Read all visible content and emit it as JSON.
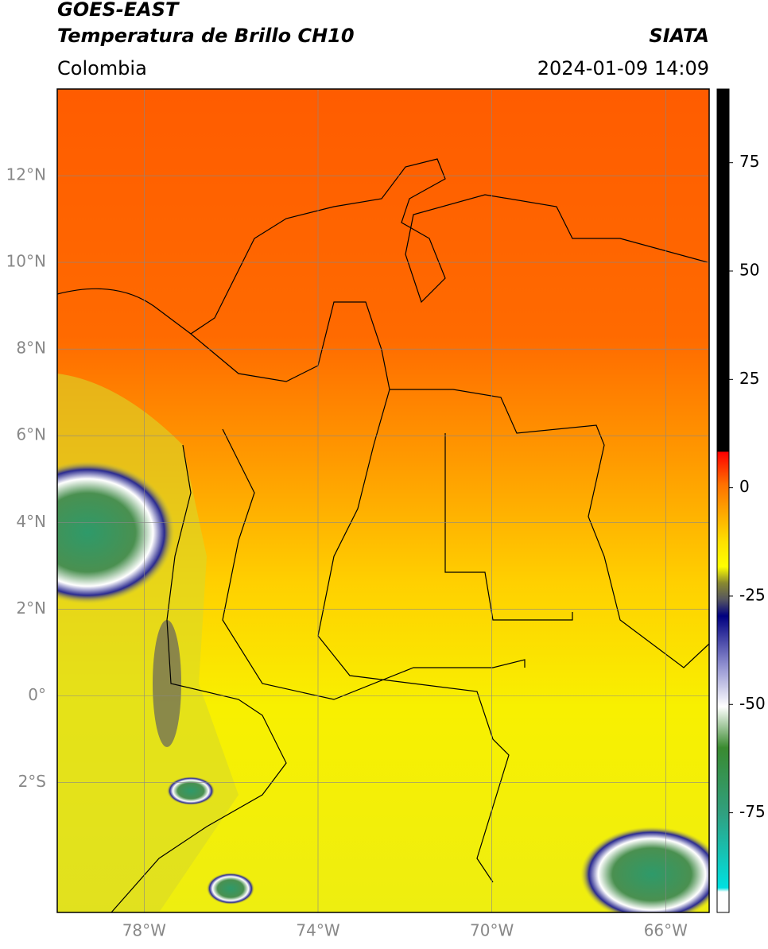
{
  "header": {
    "title_line1": "GOES-EAST",
    "title_line2": "Temperatura de Brillo CH10",
    "region": "Colombia",
    "source": "SIATA",
    "datetime": "2024-01-09 14:09"
  },
  "map": {
    "xlim": [
      -80,
      -65
    ],
    "ylim": [
      -5,
      14
    ],
    "xticks": [
      {
        "value": -78,
        "label": "78°W"
      },
      {
        "value": -74,
        "label": "74°W"
      },
      {
        "value": -70,
        "label": "70°W"
      },
      {
        "value": -66,
        "label": "66°W"
      }
    ],
    "yticks": [
      {
        "value": 12,
        "label": "12°N"
      },
      {
        "value": 10,
        "label": "10°N"
      },
      {
        "value": 8,
        "label": "8°N"
      },
      {
        "value": 6,
        "label": "6°N"
      },
      {
        "value": 4,
        "label": "4°N"
      },
      {
        "value": 2,
        "label": "2°N"
      },
      {
        "value": 0,
        "label": "0°"
      },
      {
        "value": -2,
        "label": "2°S"
      }
    ]
  },
  "colorbar": {
    "lim": [
      -98,
      92
    ],
    "ticks": [
      75,
      50,
      25,
      0,
      -25,
      -50,
      -75
    ]
  }
}
